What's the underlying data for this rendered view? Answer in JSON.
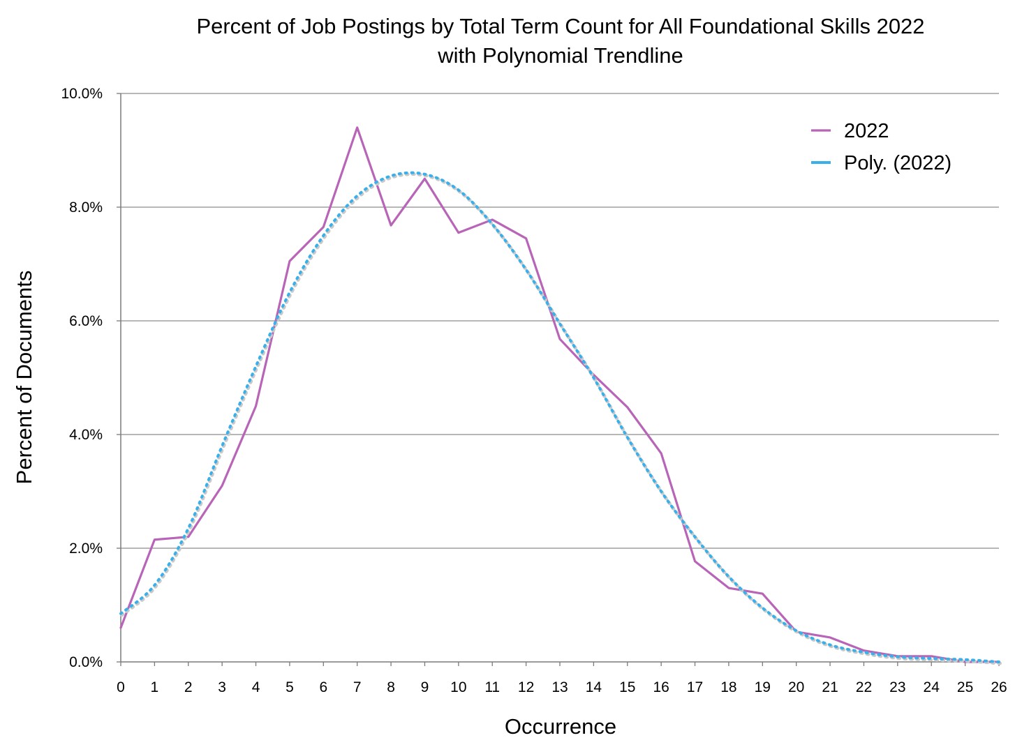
{
  "chart_data": {
    "type": "line",
    "title": "Percent of Job Postings by Total Term Count for All Foundational Skills 2022",
    "subtitle": "with Polynomial Trendline",
    "xlabel": "Occurrence",
    "ylabel": "Percent of Documents",
    "x": [
      0,
      1,
      2,
      3,
      4,
      5,
      6,
      7,
      8,
      9,
      10,
      11,
      12,
      13,
      14,
      15,
      16,
      17,
      18,
      19,
      20,
      21,
      22,
      23,
      24,
      25,
      26
    ],
    "xlim": [
      0,
      26
    ],
    "ylim": [
      0,
      10
    ],
    "yticks": [
      0,
      2,
      4,
      6,
      8,
      10
    ],
    "yticklabels": [
      "0.0%",
      "2.0%",
      "4.0%",
      "6.0%",
      "8.0%",
      "10.0%"
    ],
    "xticklabels": [
      "0",
      "1",
      "2",
      "3",
      "4",
      "5",
      "6",
      "7",
      "8",
      "9",
      "10",
      "11",
      "12",
      "13",
      "14",
      "15",
      "16",
      "17",
      "18",
      "19",
      "20",
      "21",
      "22",
      "23",
      "24",
      "25",
      "26"
    ],
    "grid": "horizontal",
    "legend_position": "top-right",
    "series": [
      {
        "name": "2022",
        "style": "solid",
        "color": "#b865b8",
        "values": [
          0.6,
          2.15,
          2.2,
          3.1,
          4.5,
          7.05,
          7.65,
          9.4,
          7.68,
          8.5,
          7.55,
          7.78,
          7.45,
          5.68,
          5.05,
          4.48,
          3.67,
          1.77,
          1.3,
          1.2,
          0.53,
          0.43,
          0.2,
          0.1,
          0.1,
          0.0,
          0.0
        ]
      },
      {
        "name": "Poly. (2022)",
        "style": "dashed",
        "color": "#3ab0ea",
        "values": [
          0.85,
          1.35,
          2.35,
          3.8,
          5.2,
          6.5,
          7.5,
          8.2,
          8.55,
          8.58,
          8.3,
          7.7,
          6.9,
          5.95,
          5.0,
          3.95,
          3.0,
          2.2,
          1.5,
          0.95,
          0.55,
          0.3,
          0.17,
          0.09,
          0.06,
          0.04,
          0.0
        ]
      }
    ]
  }
}
